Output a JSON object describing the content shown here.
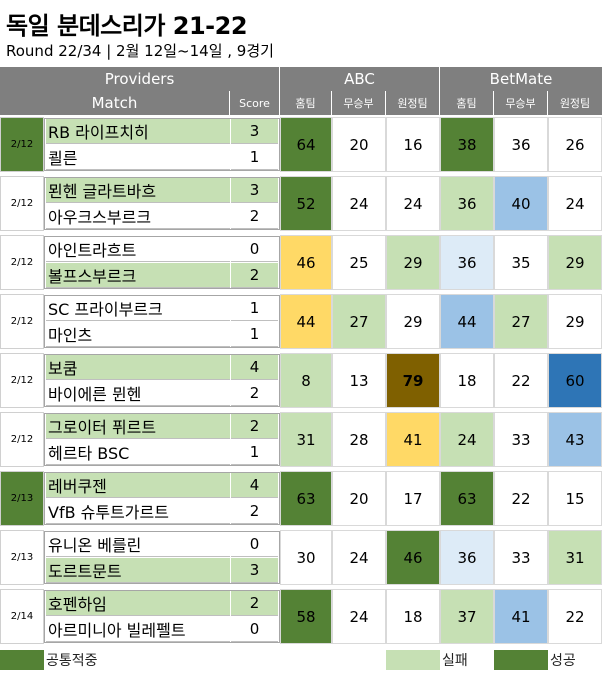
{
  "title": "독일 분데스리가 21-22",
  "subtitle": "Round 22/34 | 2월 12일~14일 , 9경기",
  "header": {
    "providers": "Providers",
    "abc": "ABC",
    "betmate": "BetMate",
    "match": "Match",
    "score": "Score",
    "home": "홈팀",
    "draw": "무승부",
    "away": "원정팀"
  },
  "colors": {
    "dark_green": "#548235",
    "light_green": "#c6e0b4",
    "yellow": "#ffd966",
    "olive": "#7f6000",
    "light_blue": "#9bc2e6",
    "pale_blue": "#ddebf7",
    "blue": "#2e75b6",
    "white": "#ffffff"
  },
  "matches": [
    {
      "date": "2/12",
      "date_color": "dark_green",
      "home": "RB 라이프치히",
      "home_score": "3",
      "home_color": "light_green",
      "away": "쾰른",
      "away_score": "1",
      "away_color": "white",
      "abc": [
        {
          "v": "64",
          "c": "dark_green"
        },
        {
          "v": "20",
          "c": "white"
        },
        {
          "v": "16",
          "c": "white"
        }
      ],
      "bet": [
        {
          "v": "38",
          "c": "dark_green"
        },
        {
          "v": "36",
          "c": "white"
        },
        {
          "v": "26",
          "c": "white"
        }
      ]
    },
    {
      "date": "2/12",
      "date_color": "white",
      "home": "묀헨 글라트바흐",
      "home_score": "3",
      "home_color": "light_green",
      "away": "아우크스부르크",
      "away_score": "2",
      "away_color": "white",
      "abc": [
        {
          "v": "52",
          "c": "dark_green"
        },
        {
          "v": "24",
          "c": "white"
        },
        {
          "v": "24",
          "c": "white"
        }
      ],
      "bet": [
        {
          "v": "36",
          "c": "light_green"
        },
        {
          "v": "40",
          "c": "light_blue"
        },
        {
          "v": "24",
          "c": "white"
        }
      ]
    },
    {
      "date": "2/12",
      "date_color": "white",
      "home": "아인트라흐트",
      "home_score": "0",
      "home_color": "white",
      "away": "볼프스부르크",
      "away_score": "2",
      "away_color": "light_green",
      "abc": [
        {
          "v": "46",
          "c": "yellow"
        },
        {
          "v": "25",
          "c": "white"
        },
        {
          "v": "29",
          "c": "light_green"
        }
      ],
      "bet": [
        {
          "v": "36",
          "c": "pale_blue"
        },
        {
          "v": "35",
          "c": "white"
        },
        {
          "v": "29",
          "c": "light_green"
        }
      ]
    },
    {
      "date": "2/12",
      "date_color": "white",
      "home": "SC 프라이부르크",
      "home_score": "1",
      "home_color": "white",
      "away": "마인츠",
      "away_score": "1",
      "away_color": "white",
      "abc": [
        {
          "v": "44",
          "c": "yellow"
        },
        {
          "v": "27",
          "c": "light_green"
        },
        {
          "v": "29",
          "c": "white"
        }
      ],
      "bet": [
        {
          "v": "44",
          "c": "light_blue"
        },
        {
          "v": "27",
          "c": "light_green"
        },
        {
          "v": "29",
          "c": "white"
        }
      ]
    },
    {
      "date": "2/12",
      "date_color": "white",
      "home": "보쿰",
      "home_score": "4",
      "home_color": "light_green",
      "away": "바이에른 뮌헨",
      "away_score": "2",
      "away_color": "white",
      "abc": [
        {
          "v": "8",
          "c": "light_green"
        },
        {
          "v": "13",
          "c": "white"
        },
        {
          "v": "79",
          "c": "olive",
          "bold": true
        }
      ],
      "bet": [
        {
          "v": "18",
          "c": "white"
        },
        {
          "v": "22",
          "c": "white"
        },
        {
          "v": "60",
          "c": "blue"
        }
      ]
    },
    {
      "date": "2/12",
      "date_color": "white",
      "home": "그로이터 퓌르트",
      "home_score": "2",
      "home_color": "light_green",
      "away": "헤르타 BSC",
      "away_score": "1",
      "away_color": "white",
      "abc": [
        {
          "v": "31",
          "c": "light_green"
        },
        {
          "v": "28",
          "c": "white"
        },
        {
          "v": "41",
          "c": "yellow"
        }
      ],
      "bet": [
        {
          "v": "24",
          "c": "light_green"
        },
        {
          "v": "33",
          "c": "white"
        },
        {
          "v": "43",
          "c": "light_blue"
        }
      ]
    },
    {
      "date": "2/13",
      "date_color": "dark_green",
      "home": "레버쿠젠",
      "home_score": "4",
      "home_color": "light_green",
      "away": "VfB 슈투트가르트",
      "away_score": "2",
      "away_color": "white",
      "abc": [
        {
          "v": "63",
          "c": "dark_green"
        },
        {
          "v": "20",
          "c": "white"
        },
        {
          "v": "17",
          "c": "white"
        }
      ],
      "bet": [
        {
          "v": "63",
          "c": "dark_green"
        },
        {
          "v": "22",
          "c": "white"
        },
        {
          "v": "15",
          "c": "white"
        }
      ]
    },
    {
      "date": "2/13",
      "date_color": "white",
      "home": "유니온 베를린",
      "home_score": "0",
      "home_color": "white",
      "away": "도르트문트",
      "away_score": "3",
      "away_color": "light_green",
      "abc": [
        {
          "v": "30",
          "c": "white"
        },
        {
          "v": "24",
          "c": "white"
        },
        {
          "v": "46",
          "c": "dark_green"
        }
      ],
      "bet": [
        {
          "v": "36",
          "c": "pale_blue"
        },
        {
          "v": "33",
          "c": "white"
        },
        {
          "v": "31",
          "c": "light_green"
        }
      ]
    },
    {
      "date": "2/14",
      "date_color": "white",
      "home": "호펜하임",
      "home_score": "2",
      "home_color": "light_green",
      "away": "아르미니아 빌레펠트",
      "away_score": "0",
      "away_color": "white",
      "abc": [
        {
          "v": "58",
          "c": "dark_green"
        },
        {
          "v": "24",
          "c": "white"
        },
        {
          "v": "18",
          "c": "white"
        }
      ],
      "bet": [
        {
          "v": "37",
          "c": "light_green"
        },
        {
          "v": "41",
          "c": "light_blue"
        },
        {
          "v": "22",
          "c": "white"
        }
      ]
    }
  ],
  "legend": {
    "both_hit": "공통적중",
    "fail": "실패",
    "success": "성공"
  }
}
